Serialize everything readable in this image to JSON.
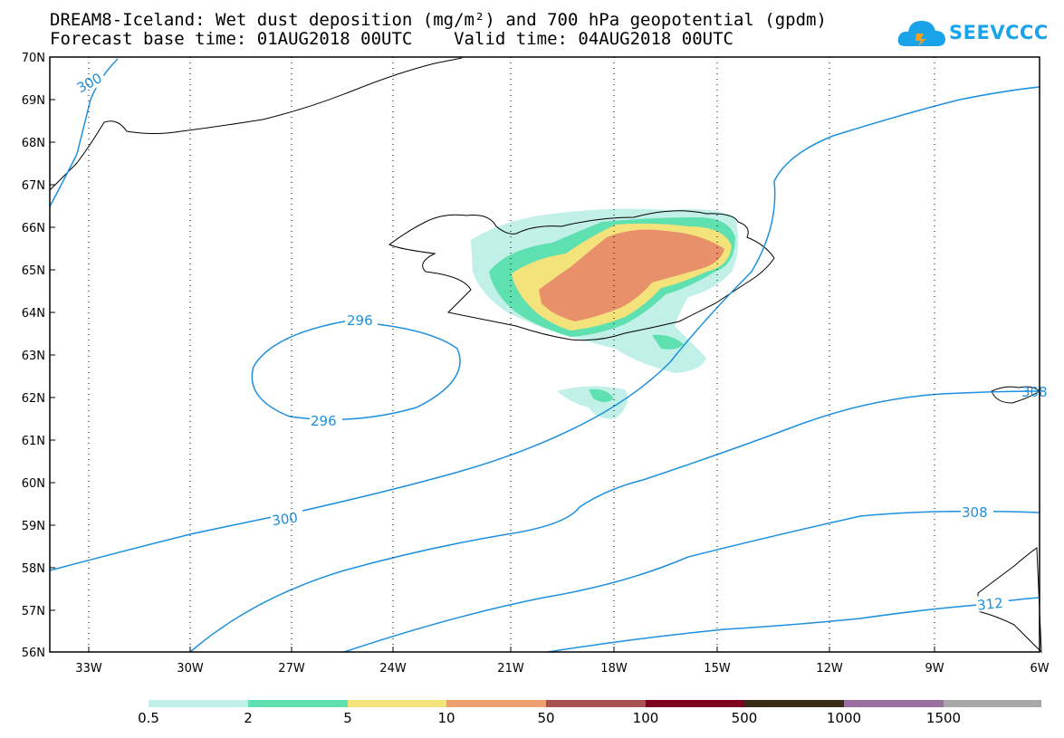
{
  "header": {
    "line1": "DREAM8-Iceland: Wet dust deposition (mg/m²) and 700 hPa geopotential (gpdm)",
    "line2": "Forecast base time: 01AUG2018 00UTC    Valid time: 04AUG2018 00UTC"
  },
  "logo": {
    "text": "SEEVCCC",
    "icon": "cloud-logo-icon",
    "color": "#1aa3e8"
  },
  "map": {
    "lon_range": [
      -34.5,
      -6
    ],
    "lat_range": [
      56,
      70
    ],
    "lat_labels": [
      "70N",
      "69N",
      "68N",
      "67N",
      "66N",
      "65N",
      "64N",
      "63N",
      "62N",
      "61N",
      "60N",
      "59N",
      "58N",
      "57N",
      "56N"
    ],
    "lon_labels": [
      "33W",
      "30W",
      "27W",
      "24W",
      "21W",
      "18W",
      "15W",
      "12W",
      "9W",
      "6W"
    ],
    "contour_color": "#1e90dd",
    "contour_labels": [
      "300",
      "296",
      "296",
      "300",
      "308",
      "312",
      "308"
    ]
  },
  "legend": {
    "labels": [
      "0.5",
      "2",
      "5",
      "10",
      "50",
      "100",
      "500",
      "1000",
      "1500"
    ],
    "colors": [
      "#c0f0e8",
      "#5fe0b0",
      "#f4e27a",
      "#f0a070",
      "#a85050",
      "#800020",
      "#3a2a18",
      "#9a70a0",
      "#a8a8a8"
    ]
  }
}
